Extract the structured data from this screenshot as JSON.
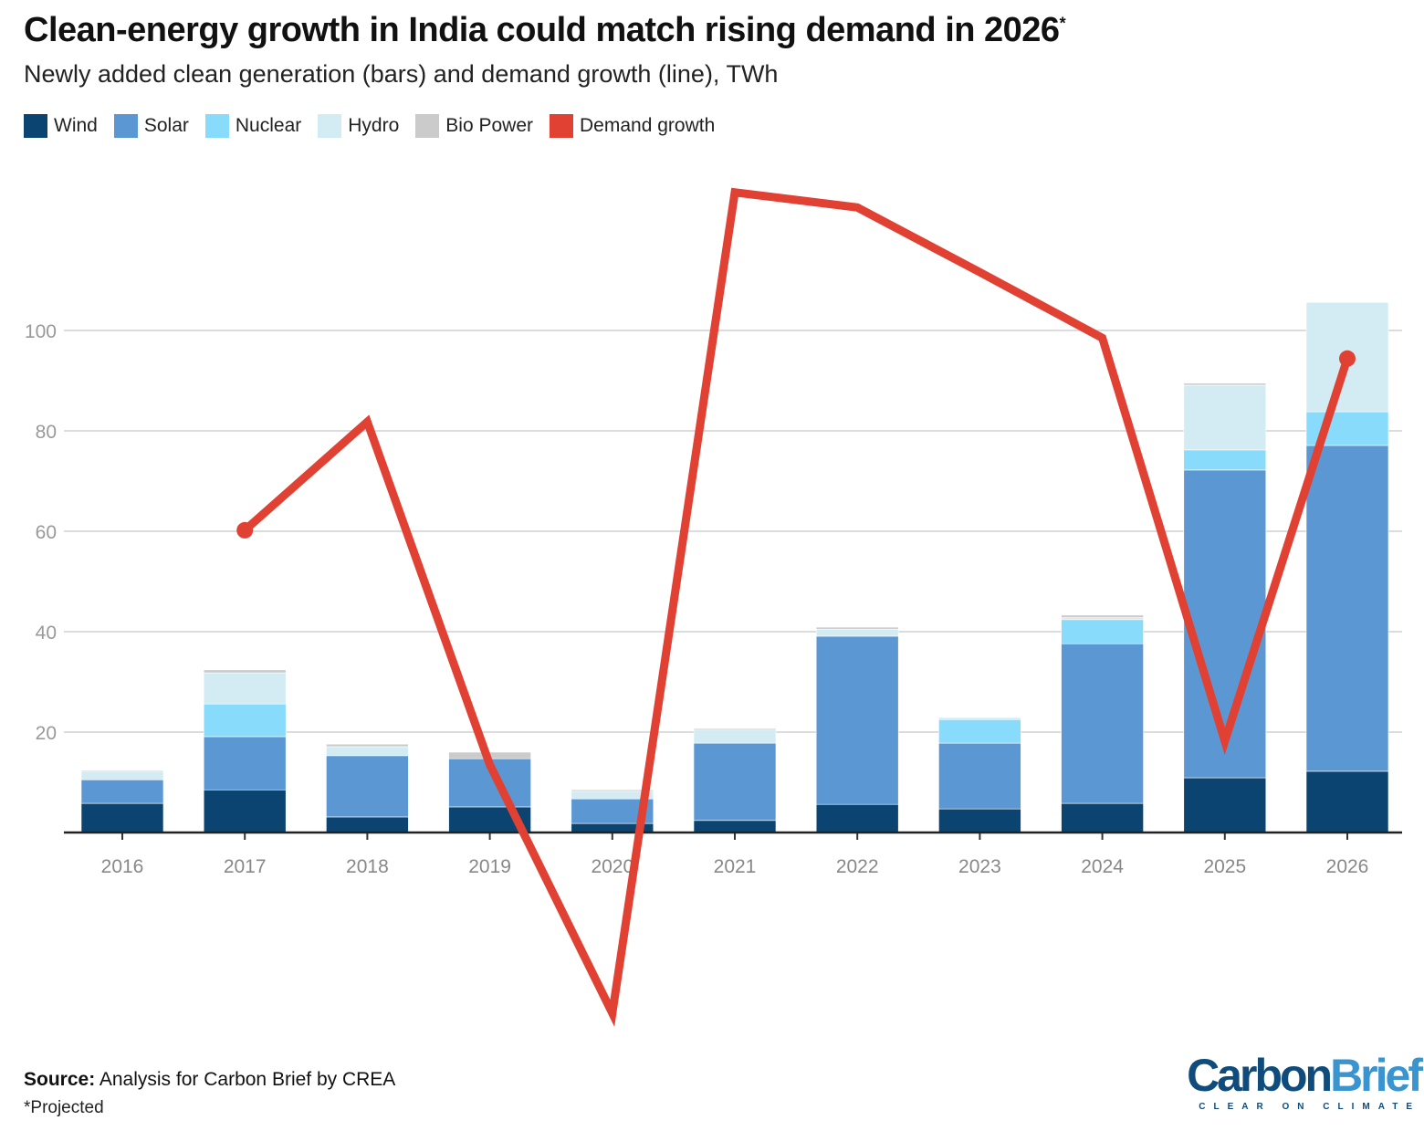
{
  "chart_data": {
    "type": "bar",
    "stacked": true,
    "title": "Clean-energy growth in India could match rising demand in 2026",
    "title_mark": "*",
    "subtitle": "Newly added clean generation (bars) and demand growth (line), TWh",
    "categories": [
      "2016",
      "2017",
      "2018",
      "2019",
      "2020",
      "2021",
      "2022",
      "2023",
      "2024",
      "2025",
      "2026"
    ],
    "series": [
      {
        "name": "Wind",
        "color": "#0b4471",
        "values": [
          5.8,
          8.5,
          3.1,
          5.1,
          1.8,
          2.4,
          5.6,
          4.7,
          5.8,
          10.9,
          12.2
        ]
      },
      {
        "name": "Solar",
        "color": "#5b98d3",
        "values": [
          4.7,
          10.6,
          12.2,
          9.6,
          4.9,
          15.4,
          33.5,
          13.1,
          31.8,
          61.3,
          64.9
        ]
      },
      {
        "name": "Nuclear",
        "color": "#88dbfb",
        "values": [
          0,
          6.5,
          0,
          0,
          0,
          0,
          0,
          4.7,
          4.8,
          4.0,
          6.7
        ]
      },
      {
        "name": "Hydro",
        "color": "#d3ecf3",
        "values": [
          1.7,
          6.2,
          1.8,
          0,
          1.5,
          2.6,
          1.4,
          0.4,
          0.4,
          12.9,
          21.8
        ]
      },
      {
        "name": "Bio Power",
        "color": "#cbcbcb",
        "values": [
          0.2,
          0.6,
          0.5,
          1.3,
          0.3,
          0.3,
          0.4,
          0,
          0.5,
          0.4,
          0
        ]
      }
    ],
    "line": {
      "name": "Demand growth",
      "color": "#e04133",
      "values": [
        null,
        60.2,
        81.8,
        13.5,
        -36,
        127.5,
        124.5,
        111.6,
        98.5,
        18.2,
        94.4
      ]
    },
    "yticks": [
      20,
      40,
      60,
      80,
      100
    ],
    "ylim": [
      -40,
      130
    ],
    "grid": true,
    "legend": "top-left"
  },
  "footer": {
    "source_label": "Source:",
    "source_text": " Analysis for Carbon Brief by CREA",
    "note": "*Projected"
  },
  "logo": {
    "part1": "Carbon",
    "part2": "Brief",
    "tagline": "CLEAR ON CLIMATE"
  }
}
